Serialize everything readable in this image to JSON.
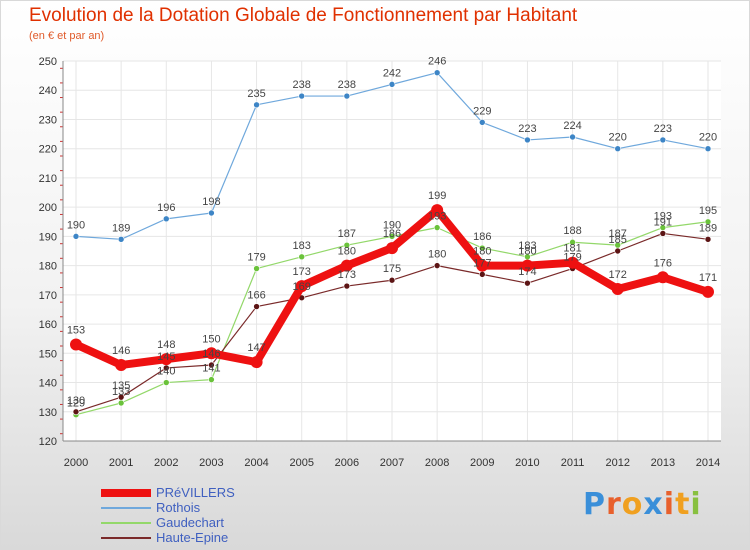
{
  "title": "Evolution de la Dotation Globale de Fonctionnement par Habitant",
  "subtitle": "(en € et par an)",
  "logo": {
    "letters": [
      "P",
      "r",
      "o",
      "x",
      "i",
      "t",
      "i"
    ],
    "colors": [
      "#3a8fd9",
      "#e8602c",
      "#f0a020",
      "#3a8fd9",
      "#e8602c",
      "#f0a020",
      "#88c040"
    ]
  },
  "chart_data": {
    "type": "line",
    "title": "Evolution de la Dotation Globale de Fonctionnement par Habitant",
    "ylabel": "(en € et par an)",
    "xlabel": "",
    "ylim": [
      120,
      250
    ],
    "yticks": [
      120,
      130,
      140,
      150,
      160,
      170,
      180,
      190,
      200,
      210,
      220,
      230,
      240,
      250
    ],
    "categories": [
      "2000",
      "2001",
      "2002",
      "2003",
      "2004",
      "2005",
      "2006",
      "2007",
      "2008",
      "2009",
      "2010",
      "2011",
      "2012",
      "2013",
      "2014"
    ],
    "series": [
      {
        "name": "Rothois",
        "color": "#6fa8dc",
        "marker": "#3d85c6",
        "values": [
          190,
          189,
          196,
          198,
          235,
          238,
          238,
          242,
          246,
          229,
          223,
          224,
          220,
          223,
          220
        ]
      },
      {
        "name": "Gaudechart",
        "color": "#93d86a",
        "marker": "#6ac23a",
        "values": [
          129,
          133,
          140,
          141,
          179,
          183,
          187,
          190,
          193,
          186,
          183,
          188,
          187,
          193,
          195
        ]
      },
      {
        "name": "Haute-Epine",
        "color": "#7a2a2a",
        "marker": "#5c1414",
        "values": [
          130,
          135,
          145,
          146,
          166,
          169,
          173,
          175,
          180,
          177,
          174,
          179,
          185,
          191,
          189
        ]
      },
      {
        "name": "PRéVILLERS",
        "color": "#ee1111",
        "marker": "#ee1111",
        "values": [
          153,
          146,
          148,
          150,
          147,
          173,
          180,
          186,
          199,
          180,
          180,
          181,
          172,
          176,
          171
        ],
        "thick": true
      }
    ],
    "legend": [
      "PRéVILLERS",
      "Rothois",
      "Gaudechart",
      "Haute-Epine"
    ],
    "legend_position": "bottom-left",
    "grid": true
  }
}
